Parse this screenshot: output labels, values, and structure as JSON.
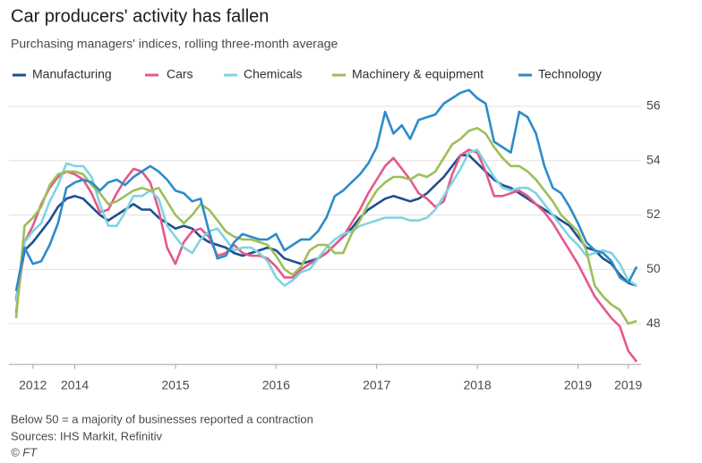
{
  "chart_data": {
    "type": "line",
    "title": "Car producers' activity has fallen",
    "subtitle": "Purchasing managers' indices, rolling three-month average",
    "note": "Below 50 = a majority of businesses reported a contraction",
    "source": "Sources: IHS Markit, Refinitiv",
    "credit": "© FT",
    "categories": [
      null,
      null,
      "2012",
      null,
      null,
      null,
      null,
      "2014",
      null,
      null,
      null,
      null,
      null,
      null,
      null,
      null,
      null,
      null,
      null,
      "2015",
      null,
      null,
      null,
      null,
      null,
      null,
      null,
      null,
      null,
      null,
      null,
      "2016",
      null,
      null,
      null,
      null,
      null,
      null,
      null,
      null,
      null,
      null,
      null,
      "2017",
      null,
      null,
      null,
      null,
      null,
      null,
      null,
      null,
      null,
      null,
      null,
      "2018",
      null,
      null,
      null,
      null,
      null,
      null,
      null,
      null,
      null,
      null,
      null,
      "2019",
      null,
      null,
      null,
      null,
      null,
      "2019",
      null
    ],
    "ylim": [
      46.5,
      56.7
    ],
    "yticks": [
      48,
      50,
      52,
      54,
      56
    ],
    "grid": true,
    "series": [
      {
        "name": "Manufacturing",
        "color": "#1f4f8f",
        "values": [
          48.9,
          50.7,
          51.0,
          51.4,
          51.8,
          52.3,
          52.6,
          52.7,
          52.6,
          52.3,
          52.0,
          51.8,
          52.0,
          52.2,
          52.4,
          52.2,
          52.2,
          51.9,
          51.7,
          51.5,
          51.6,
          51.5,
          51.2,
          51.0,
          50.9,
          50.8,
          50.6,
          50.5,
          50.6,
          50.7,
          50.8,
          50.7,
          50.4,
          50.3,
          50.2,
          50.3,
          50.4,
          50.6,
          50.9,
          51.2,
          51.5,
          51.9,
          52.2,
          52.4,
          52.6,
          52.7,
          52.6,
          52.5,
          52.6,
          52.8,
          53.1,
          53.4,
          53.8,
          54.2,
          54.2,
          53.9,
          53.6,
          53.3,
          53.1,
          53.0,
          52.8,
          52.6,
          52.4,
          52.2,
          52.0,
          51.8,
          51.6,
          51.2,
          50.8,
          50.7,
          50.4,
          50.2,
          49.8,
          49.5,
          49.4
        ]
      },
      {
        "name": "Cars",
        "color": "#e5588a",
        "values": [
          48.4,
          51.0,
          51.6,
          52.4,
          53.0,
          53.4,
          53.6,
          53.5,
          53.3,
          52.8,
          52.1,
          52.2,
          52.8,
          53.3,
          53.7,
          53.6,
          53.2,
          52.2,
          50.8,
          50.2,
          51.0,
          51.4,
          51.5,
          51.2,
          50.5,
          50.6,
          50.9,
          50.6,
          50.5,
          50.5,
          50.4,
          50.1,
          49.7,
          49.7,
          50.0,
          50.2,
          50.4,
          50.6,
          50.9,
          51.2,
          51.7,
          52.2,
          52.8,
          53.3,
          53.8,
          54.1,
          53.7,
          53.3,
          52.8,
          52.6,
          52.3,
          52.5,
          53.5,
          54.2,
          54.4,
          54.3,
          53.6,
          52.7,
          52.7,
          52.8,
          52.9,
          52.7,
          52.4,
          52.1,
          51.7,
          51.2,
          50.7,
          50.2,
          49.6,
          49.0,
          48.6,
          48.2,
          47.9,
          47.0,
          46.6
        ]
      },
      {
        "name": "Chemicals",
        "color": "#80d4e0",
        "values": [
          48.8,
          51.0,
          51.4,
          51.7,
          52.5,
          53.1,
          53.9,
          53.8,
          53.8,
          53.4,
          52.4,
          51.6,
          51.6,
          52.1,
          52.7,
          52.7,
          52.9,
          52.6,
          51.6,
          51.2,
          50.8,
          50.6,
          51.1,
          51.4,
          51.5,
          51.1,
          50.7,
          50.8,
          50.8,
          50.6,
          50.3,
          49.7,
          49.4,
          49.6,
          49.9,
          50.0,
          50.4,
          50.8,
          51.1,
          51.3,
          51.4,
          51.6,
          51.7,
          51.8,
          51.9,
          51.9,
          51.9,
          51.8,
          51.8,
          51.9,
          52.2,
          52.7,
          53.2,
          53.7,
          54.3,
          54.4,
          53.9,
          53.4,
          53.0,
          52.9,
          53.0,
          53.0,
          52.8,
          52.4,
          52.0,
          51.6,
          51.2,
          50.9,
          50.5,
          50.6,
          50.7,
          50.6,
          50.2,
          49.6,
          49.4
        ]
      },
      {
        "name": "Machinery & equipment",
        "color": "#9cbf58",
        "values": [
          48.2,
          51.6,
          51.9,
          52.3,
          53.1,
          53.5,
          53.6,
          53.6,
          53.5,
          53.1,
          52.8,
          52.4,
          52.5,
          52.7,
          52.9,
          53.0,
          52.9,
          53.0,
          52.5,
          52.0,
          51.7,
          52.0,
          52.4,
          52.2,
          51.8,
          51.4,
          51.2,
          51.1,
          51.1,
          51.0,
          50.9,
          50.5,
          50.0,
          49.8,
          50.1,
          50.7,
          50.9,
          50.9,
          50.6,
          50.6,
          51.3,
          51.8,
          52.4,
          52.9,
          53.2,
          53.4,
          53.4,
          53.3,
          53.5,
          53.4,
          53.6,
          54.1,
          54.6,
          54.8,
          55.1,
          55.2,
          55.0,
          54.5,
          54.1,
          53.8,
          53.8,
          53.6,
          53.3,
          52.9,
          52.5,
          52.0,
          51.7,
          51.4,
          50.7,
          49.4,
          49.0,
          48.7,
          48.5,
          48.0,
          48.1
        ]
      },
      {
        "name": "Technology",
        "color": "#2d8bca",
        "values": [
          49.2,
          50.8,
          50.2,
          50.3,
          50.9,
          51.7,
          53.0,
          53.2,
          53.3,
          53.2,
          52.9,
          53.2,
          53.3,
          53.1,
          53.4,
          53.6,
          53.8,
          53.6,
          53.3,
          52.9,
          52.8,
          52.5,
          52.6,
          51.4,
          50.4,
          50.5,
          51.0,
          51.3,
          51.2,
          51.1,
          51.1,
          51.3,
          50.7,
          50.9,
          51.1,
          51.1,
          51.4,
          51.9,
          52.7,
          52.9,
          53.2,
          53.5,
          53.9,
          54.5,
          55.8,
          55.0,
          55.3,
          54.8,
          55.5,
          55.6,
          55.7,
          56.1,
          56.3,
          56.5,
          56.6,
          56.3,
          56.1,
          54.7,
          54.5,
          54.3,
          55.8,
          55.6,
          55.0,
          53.8,
          53.0,
          52.8,
          52.3,
          51.7,
          51.0,
          50.7,
          50.6,
          50.3,
          49.7,
          49.5,
          50.1
        ]
      }
    ]
  }
}
